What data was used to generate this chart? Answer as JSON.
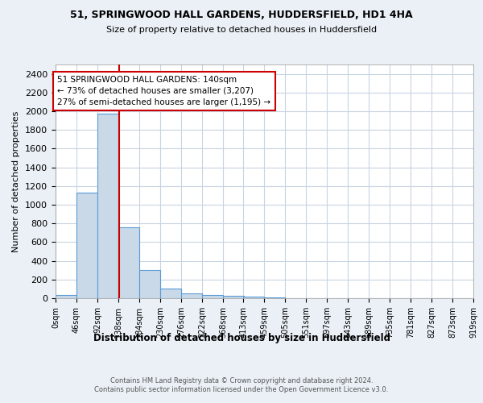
{
  "title1": "51, SPRINGWOOD HALL GARDENS, HUDDERSFIELD, HD1 4HA",
  "title2": "Size of property relative to detached houses in Huddersfield",
  "xlabel": "Distribution of detached houses by size in Huddersfield",
  "ylabel": "Number of detached properties",
  "bin_edges": [
    0,
    46,
    92,
    138,
    184,
    230,
    276,
    322,
    368,
    413,
    459,
    505,
    551,
    597,
    643,
    689,
    735,
    781,
    827,
    873,
    919
  ],
  "bar_heights": [
    35,
    1130,
    1970,
    760,
    300,
    100,
    50,
    38,
    22,
    15,
    10,
    0,
    0,
    0,
    0,
    0,
    0,
    0,
    0,
    0
  ],
  "bar_color": "#c9d9e8",
  "bar_edge_color": "#5b9bd5",
  "property_size": 140,
  "red_line_color": "#cc0000",
  "annotation_line1": "51 SPRINGWOOD HALL GARDENS: 140sqm",
  "annotation_line2": "← 73% of detached houses are smaller (3,207)",
  "annotation_line3": "27% of semi-detached houses are larger (1,195) →",
  "annotation_box_color": "white",
  "annotation_box_edge": "#cc0000",
  "ylim": [
    0,
    2500
  ],
  "yticks": [
    0,
    200,
    400,
    600,
    800,
    1000,
    1200,
    1400,
    1600,
    1800,
    2000,
    2200,
    2400
  ],
  "footer": "Contains HM Land Registry data © Crown copyright and database right 2024.\nContains public sector information licensed under the Open Government Licence v3.0.",
  "bg_color": "#eaf0f6",
  "plot_bg_color": "white",
  "grid_color": "#c8d4e0"
}
